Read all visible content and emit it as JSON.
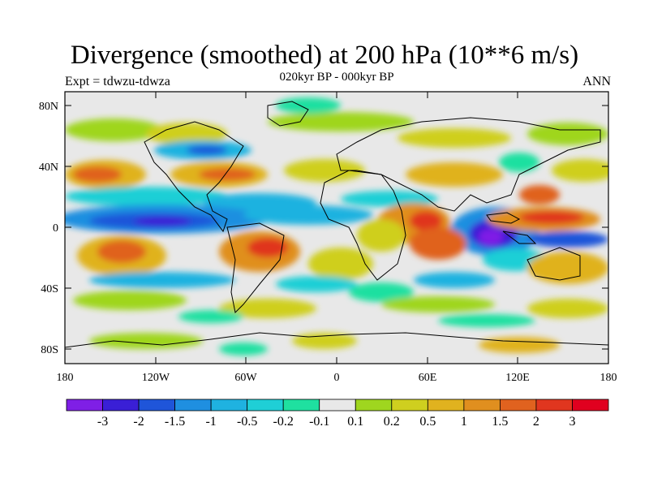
{
  "title": "Divergence (smoothed) at 200 hPa (10**6 m/s)",
  "subtitle": "020kyr BP - 000kyr BP",
  "experiment": "Expt = tdwzu-tdwza",
  "season": "ANN",
  "lat_labels": [
    "80N",
    "40N",
    "0",
    "40S",
    "80S"
  ],
  "lon_labels": [
    "180",
    "120W",
    "60W",
    "0",
    "60E",
    "120E",
    "180"
  ],
  "colorbar": {
    "labels": [
      "-3",
      "-2",
      "-1.5",
      "-1",
      "-0.5",
      "-0.2",
      "-0.1",
      "0.1",
      "0.2",
      "0.5",
      "1",
      "1.5",
      "2",
      "3"
    ],
    "colors": [
      "#7f1fe6",
      "#3a1fd6",
      "#1f55d9",
      "#1f8fe0",
      "#1fb2e0",
      "#1fcfd6",
      "#1fe0a0",
      "#e8e8e8",
      "#9fd61f",
      "#cfcf1f",
      "#e0b21f",
      "#e08f1f",
      "#e0621f",
      "#e0361f",
      "#e0001f"
    ]
  }
}
